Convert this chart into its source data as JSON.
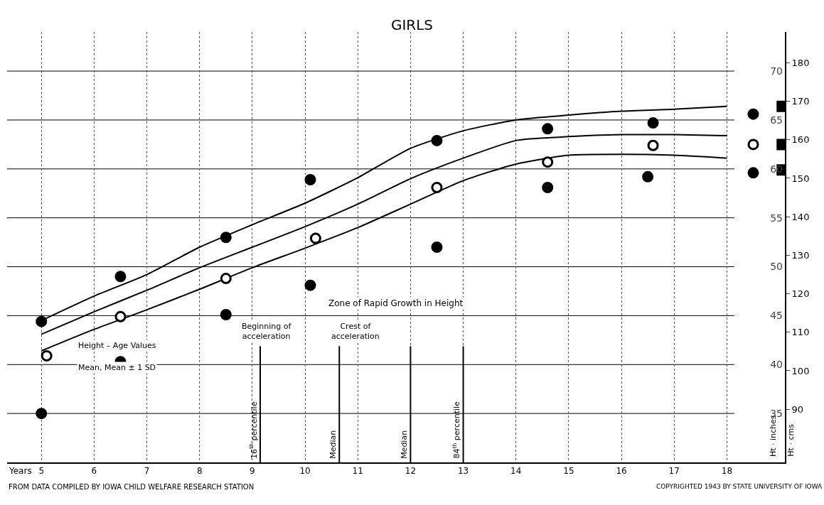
{
  "chart_data": {
    "type": "line",
    "title": "GIRLS",
    "xlabel": "Years",
    "ylabel": "Ht · inches",
    "y2label": "Ht · cms",
    "x": [
      5,
      6,
      7,
      8,
      9,
      10,
      11,
      12,
      13,
      14,
      15,
      16,
      17,
      18
    ],
    "series": [
      {
        "color": "#000000",
        "marker": "none",
        "values": [
          44.5,
          47.0,
          49.2,
          52.0,
          54.3,
          56.5,
          59.1,
          62.1,
          63.9,
          65.0,
          65.5,
          65.9,
          66.1,
          66.4
        ]
      },
      {
        "color": "#000000",
        "marker": "none",
        "values": [
          43.1,
          45.4,
          47.6,
          49.9,
          52.0,
          54.1,
          56.4,
          59.0,
          61.1,
          62.9,
          63.3,
          63.5,
          63.5,
          63.4
        ]
      },
      {
        "color": "#000000",
        "marker": "none",
        "values": [
          41.4,
          43.6,
          45.6,
          47.7,
          49.9,
          51.9,
          54.0,
          56.4,
          58.8,
          60.5,
          61.4,
          61.5,
          61.4,
          61.1
        ]
      },
      {
        "type": "scatter",
        "color": "#000000",
        "marker": "circle",
        "x": [
          5.0,
          5.0,
          6.5,
          6.5,
          8.5,
          8.5,
          10.1,
          10.1,
          12.5,
          12.5,
          14.6,
          14.6,
          16.6,
          16.5,
          18.5,
          18.5
        ],
        "values": [
          44.4,
          35.0,
          40.3,
          49.0,
          53.0,
          45.1,
          58.9,
          48.1,
          62.9,
          52.0,
          64.1,
          58.1,
          64.7,
          59.2,
          65.6,
          59.6
        ]
      },
      {
        "type": "scatter",
        "color": "#ffffff",
        "marker": "circle",
        "x": [
          5.1,
          6.5,
          8.5,
          10.2,
          12.5,
          14.6,
          16.6,
          18.5
        ],
        "values": [
          40.9,
          44.9,
          48.8,
          52.9,
          58.1,
          60.7,
          62.4,
          62.5
        ]
      },
      {
        "type": "scatter",
        "color": "#000000",
        "marker": "square",
        "x": [
          19.05,
          19.05,
          19.05
        ],
        "values": [
          66.4,
          62.5,
          59.9
        ]
      }
    ],
    "xlim": [
      4.35,
      19.1
    ],
    "xticks": [
      5,
      6,
      7,
      8,
      9,
      10,
      11,
      12,
      13,
      14,
      15,
      16,
      17,
      18
    ],
    "ylim": [
      30,
      74
    ],
    "yticks": [
      35,
      40,
      45,
      50,
      55,
      60,
      65,
      70
    ],
    "y2lim": [
      76.2,
      188
    ],
    "y2ticks": [
      90,
      100,
      110,
      120,
      130,
      140,
      150,
      160,
      170,
      180
    ],
    "ref_lines": [
      {
        "axis": "x",
        "value": 9.15,
        "label": "16$^{th}$ percentile"
      },
      {
        "axis": "x",
        "value": 10.65,
        "label": "Median"
      },
      {
        "axis": "x",
        "value": 12.0,
        "label": "Median"
      },
      {
        "axis": "x",
        "value": 13.0,
        "label": "84$^{th}$ percentile"
      }
    ],
    "annotations": [
      "Zone of Rapid Growth in Height",
      "Beginning of\nacceleration",
      "Crest of\nacceleration",
      "Height – Age Values",
      "Mean, Mean ± 1 SD",
      "FROM DATA COMPILED BY IOWA CHILD WELFARE RESEARCH STATION",
      "COPYRIGHTED 1943 BY STATE UNIVERSITY OF IOWA"
    ],
    "grid": true,
    "line_style": "solid"
  }
}
